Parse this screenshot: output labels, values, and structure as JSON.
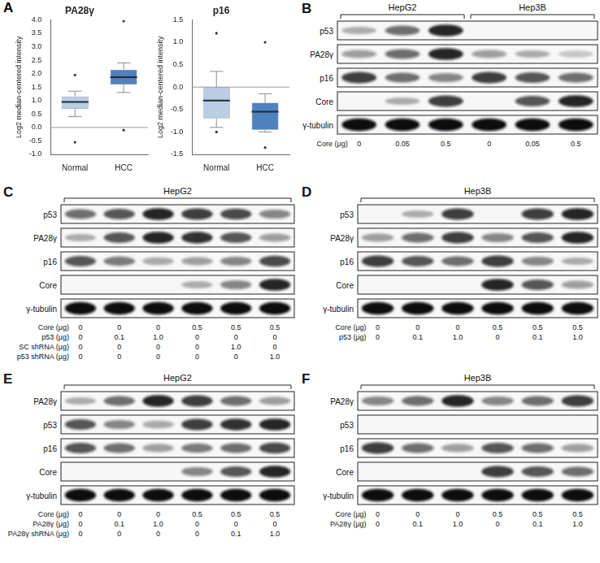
{
  "chart_panel": {
    "label": "A"
  },
  "chart_data": [
    {
      "type": "box",
      "title": "PA28γ",
      "y_label": "Log2 median-centered intensity",
      "categories": [
        "Normal",
        "HCC"
      ],
      "boxes": [
        {
          "color": "#b9cde5",
          "whisker_low": 0.4,
          "q1": 0.7,
          "median": 0.95,
          "q3": 1.15,
          "whisker_high": 1.35,
          "outliers": [
            -0.55,
            1.95
          ]
        },
        {
          "color": "#4f81bd",
          "whisker_low": 1.3,
          "q1": 1.6,
          "median": 1.87,
          "q3": 2.15,
          "whisker_high": 2.4,
          "outliers": [
            -0.1,
            3.95
          ]
        }
      ],
      "hline": 0,
      "ylim": [
        -1,
        4
      ],
      "yticks": [
        {
          "value": -1,
          "label": "-1.0"
        },
        -0.5,
        {
          "value": 0,
          "label": "0.0"
        },
        0.5,
        {
          "value": 1,
          "label": "1.0"
        },
        1.5,
        {
          "value": 2,
          "label": "2.0"
        },
        2.5,
        {
          "value": 3,
          "label": "3.0"
        },
        3.5,
        {
          "value": 4,
          "label": "4.0"
        }
      ],
      "grid": false
    },
    {
      "type": "box",
      "title": "p16",
      "y_label": "Log2 median-centered intensity",
      "categories": [
        "Normal",
        "HCC"
      ],
      "boxes": [
        {
          "color": "#b9cde5",
          "whisker_low": -0.9,
          "q1": -0.7,
          "median": -0.3,
          "q3": 0.0,
          "whisker_high": 0.35,
          "outliers": [
            -1.0,
            1.2
          ]
        },
        {
          "color": "#4f81bd",
          "whisker_low": -1.0,
          "q1": -0.95,
          "median": -0.55,
          "q3": -0.35,
          "whisker_high": -0.15,
          "outliers": [
            -1.35,
            1.0
          ]
        }
      ],
      "hline": 0,
      "ylim": [
        -1.5,
        1.5
      ],
      "yticks": [
        -1.5,
        {
          "value": -1,
          "label": "-1.0"
        },
        -0.5,
        {
          "value": 0,
          "label": "0.0"
        },
        0.5,
        {
          "value": 1,
          "label": "1.0"
        },
        1.5
      ],
      "grid": false
    }
  ],
  "blots": [
    {
      "label": "B",
      "groups": [
        {
          "name": "HepG2",
          "lanes": 3
        },
        {
          "name": "Hep3B",
          "lanes": 3
        }
      ],
      "rows": [
        {
          "name": "p53",
          "bands": [
            0.3,
            0.6,
            0.9,
            0,
            0,
            0
          ]
        },
        {
          "name": "PA28γ",
          "bands": [
            0.4,
            0.6,
            0.9,
            0.4,
            0.3,
            0.2
          ]
        },
        {
          "name": "p16",
          "bands": [
            0.8,
            0.6,
            0.5,
            0.8,
            0.7,
            0.6
          ]
        },
        {
          "name": "Core",
          "bands": [
            0,
            0.3,
            0.8,
            0,
            0.7,
            0.9
          ]
        },
        {
          "name": "γ-tubulin",
          "bands": [
            1,
            1,
            1,
            1,
            1,
            1
          ]
        }
      ],
      "conditions": [
        {
          "name": "Core (μg)",
          "values": [
            "0",
            "0.05",
            "0.5",
            "0",
            "0.05",
            "0.5"
          ]
        }
      ]
    },
    {
      "label": "C",
      "groups": [
        {
          "name": "HepG2",
          "lanes": 6
        }
      ],
      "rows": [
        {
          "name": "p53",
          "bands": [
            0.6,
            0.7,
            0.9,
            0.8,
            0.75,
            0.5
          ]
        },
        {
          "name": "PA28γ",
          "bands": [
            0.3,
            0.7,
            0.9,
            0.85,
            0.7,
            0.4
          ]
        },
        {
          "name": "p16",
          "bands": [
            0.7,
            0.55,
            0.35,
            0.4,
            0.5,
            0.75
          ]
        },
        {
          "name": "Core",
          "bands": [
            0,
            0,
            0,
            0.3,
            0.5,
            0.9
          ]
        },
        {
          "name": "γ-tubulin",
          "bands": [
            1,
            1,
            1,
            1,
            1,
            1
          ]
        }
      ],
      "conditions": [
        {
          "name": "Core (μg)",
          "values": [
            "0",
            "0",
            "0",
            "0.5",
            "0.5",
            "0.5"
          ]
        },
        {
          "name": "p53 (μg)",
          "values": [
            "0",
            "0.1",
            "1.0",
            "0",
            "0",
            "0"
          ]
        },
        {
          "name": "SC shRNA (μg)",
          "values": [
            "0",
            "0",
            "0",
            "0",
            "1.0",
            "0"
          ]
        },
        {
          "name": "p53 shRNA (μg)",
          "values": [
            "0",
            "0",
            "0",
            "0",
            "0",
            "1.0"
          ]
        }
      ]
    },
    {
      "label": "D",
      "groups": [
        {
          "name": "Hep3B",
          "lanes": 6
        }
      ],
      "rows": [
        {
          "name": "p53",
          "bands": [
            0,
            0.3,
            0.8,
            0,
            0.8,
            0.9
          ]
        },
        {
          "name": "PA28γ",
          "bands": [
            0.4,
            0.6,
            0.8,
            0.5,
            0.7,
            0.9
          ]
        },
        {
          "name": "p16",
          "bands": [
            0.8,
            0.7,
            0.6,
            0.8,
            0.5,
            0.3
          ]
        },
        {
          "name": "Core",
          "bands": [
            0,
            0,
            0,
            0.9,
            0.7,
            0.4
          ]
        },
        {
          "name": "γ-tubulin",
          "bands": [
            1,
            1,
            1,
            1,
            1,
            1
          ]
        }
      ],
      "conditions": [
        {
          "name": "Core (μg)",
          "values": [
            "0",
            "0",
            "0",
            "0.5",
            "0.5",
            "0.5"
          ]
        },
        {
          "name": "p53 (μg)",
          "values": [
            "0",
            "0.1",
            "1.0",
            "0",
            "0.1",
            "1.0"
          ]
        }
      ]
    },
    {
      "label": "E",
      "groups": [
        {
          "name": "HepG2",
          "lanes": 6
        }
      ],
      "rows": [
        {
          "name": "PA28γ",
          "bands": [
            0.3,
            0.6,
            0.9,
            0.8,
            0.6,
            0.4
          ]
        },
        {
          "name": "p53",
          "bands": [
            0.7,
            0.5,
            0.35,
            0.8,
            0.85,
            0.9
          ]
        },
        {
          "name": "p16",
          "bands": [
            0.7,
            0.6,
            0.4,
            0.55,
            0.6,
            0.75
          ]
        },
        {
          "name": "Core",
          "bands": [
            0,
            0,
            0,
            0.5,
            0.7,
            0.9
          ]
        },
        {
          "name": "γ-tubulin",
          "bands": [
            1,
            1,
            1,
            1,
            1,
            1
          ]
        }
      ],
      "conditions": [
        {
          "name": "Core (μg)",
          "values": [
            "0",
            "0",
            "0",
            "0.5",
            "0.5",
            "0.5"
          ]
        },
        {
          "name": "PA28γ (μg)",
          "values": [
            "0",
            "0.1",
            "1.0",
            "0",
            "0",
            "0"
          ]
        },
        {
          "name": "PA28γ shRNA (μg)",
          "values": [
            "0",
            "0",
            "0",
            "0",
            "0.1",
            "1.0"
          ]
        }
      ]
    },
    {
      "label": "F",
      "groups": [
        {
          "name": "Hep3B",
          "lanes": 6
        }
      ],
      "rows": [
        {
          "name": "PA28γ",
          "bands": [
            0.5,
            0.6,
            0.9,
            0.5,
            0.6,
            0.8
          ]
        },
        {
          "name": "p53",
          "bands": [
            0,
            0,
            0,
            0,
            0,
            0
          ]
        },
        {
          "name": "p16",
          "bands": [
            0.8,
            0.6,
            0.4,
            0.7,
            0.6,
            0.4
          ]
        },
        {
          "name": "Core",
          "bands": [
            0,
            0,
            0,
            0.8,
            0.7,
            0.6
          ]
        },
        {
          "name": "γ-tubulin",
          "bands": [
            1,
            1,
            1,
            1,
            1,
            1
          ]
        }
      ],
      "conditions": [
        {
          "name": "Core (μg)",
          "values": [
            "0",
            "0",
            "0",
            "0.5",
            "0.5",
            "0.5"
          ]
        },
        {
          "name": "PA28γ (μg)",
          "values": [
            "0",
            "0.1",
            "1.0",
            "0",
            "0.1",
            "1.0"
          ]
        }
      ]
    }
  ]
}
